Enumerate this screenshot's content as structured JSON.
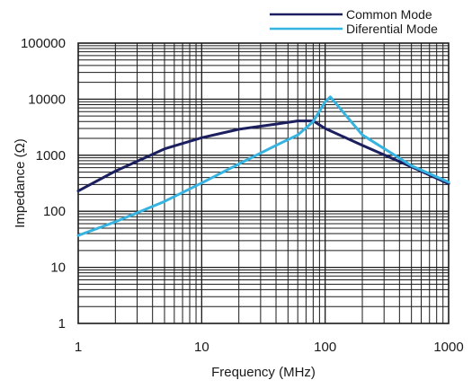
{
  "chart_data": {
    "type": "line",
    "xlabel": "Frequency (MHz)",
    "ylabel": "Impedance (Ω)",
    "x_scale": "log",
    "y_scale": "log",
    "xlim": [
      1,
      1000
    ],
    "ylim": [
      1,
      100000
    ],
    "x_ticks": [
      "1",
      "10",
      "100",
      "1000"
    ],
    "y_ticks": [
      "1",
      "10",
      "100",
      "1000",
      "10000",
      "100000"
    ],
    "grid": true,
    "legend_position": "top-right",
    "series": [
      {
        "name": "Common Mode",
        "color": "#1c1f5e",
        "points": [
          [
            1,
            230
          ],
          [
            2,
            520
          ],
          [
            5,
            1300
          ],
          [
            10,
            2050
          ],
          [
            20,
            2900
          ],
          [
            40,
            3600
          ],
          [
            60,
            4100
          ],
          [
            80,
            4100
          ],
          [
            100,
            3000
          ],
          [
            200,
            1500
          ],
          [
            500,
            620
          ],
          [
            1000,
            310
          ]
        ]
      },
      {
        "name": "Diferential Mode",
        "color": "#36b3e0",
        "points": [
          [
            1,
            37
          ],
          [
            2,
            65
          ],
          [
            5,
            150
          ],
          [
            10,
            320
          ],
          [
            20,
            700
          ],
          [
            40,
            1500
          ],
          [
            60,
            2300
          ],
          [
            80,
            4000
          ],
          [
            100,
            9000
          ],
          [
            110,
            11000
          ],
          [
            200,
            2300
          ],
          [
            500,
            650
          ],
          [
            1000,
            330
          ]
        ]
      }
    ]
  }
}
